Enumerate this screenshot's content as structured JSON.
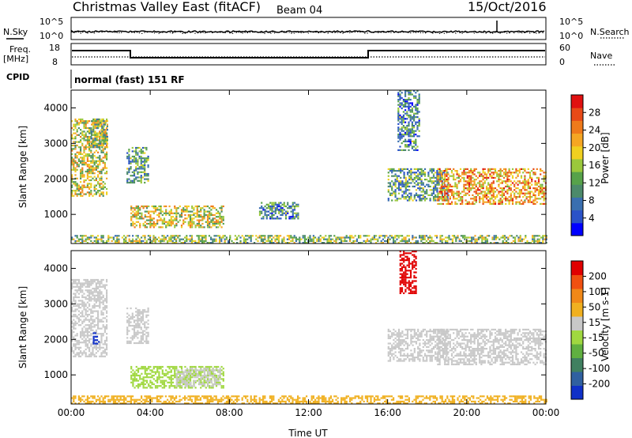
{
  "header": {
    "title": "Christmas Valley East (fitACF)",
    "beam": "Beam 04",
    "date": "15/Oct/2016"
  },
  "top_panels": {
    "nsky_label": "N.Sky",
    "nsearch_label": "N.Search",
    "nsky_ticks": [
      "10^5",
      "10^0"
    ],
    "freq_label_line1": "Freq.",
    "freq_label_line2": "[MHz]",
    "freq_ticks": [
      "18",
      "8"
    ],
    "nave_label": "Nave",
    "nave_ticks": [
      "60",
      "0"
    ],
    "cpid_label": "CPID",
    "cpid_text": "normal (fast) 151 RF"
  },
  "chart_data": [
    {
      "type": "heatmap",
      "name": "power",
      "ylabel": "Slant Range [km]",
      "xlabel": "",
      "ylim": [
        180,
        4500
      ],
      "yticks": [
        "1000",
        "2000",
        "3000",
        "4000"
      ],
      "colorbar_label": "Power [dB]",
      "colorbar_ticks": [
        "4",
        "8",
        "12",
        "16",
        "20",
        "24",
        "28"
      ],
      "colorbar_colors": [
        "#0000ff",
        "#2a52c8",
        "#3a6fb0",
        "#4c8a6b",
        "#57a24a",
        "#9bc83c",
        "#f0d020",
        "#f5a623",
        "#ef7a1a",
        "#e84a17",
        "#e01010"
      ],
      "patches": [
        {
          "t0": 0.0,
          "t1": 1.8,
          "r0": 1500,
          "r1": 3700,
          "level": 0.55
        },
        {
          "t0": 1.0,
          "t1": 1.8,
          "r0": 2900,
          "r1": 3700,
          "level": 0.45
        },
        {
          "t0": 2.8,
          "t1": 3.9,
          "r0": 1900,
          "r1": 2900,
          "level": 0.35
        },
        {
          "t0": 3.0,
          "t1": 7.7,
          "r0": 650,
          "r1": 1250,
          "level": 0.55
        },
        {
          "t0": 0.0,
          "t1": 24.0,
          "r0": 180,
          "r1": 420,
          "level": 0.45
        },
        {
          "t0": 9.5,
          "t1": 11.5,
          "r0": 900,
          "r1": 1350,
          "level": 0.3
        },
        {
          "t0": 16.0,
          "t1": 19.0,
          "r0": 1400,
          "r1": 2300,
          "level": 0.35
        },
        {
          "t0": 16.5,
          "t1": 17.6,
          "r0": 2800,
          "r1": 4500,
          "level": 0.3
        },
        {
          "t0": 18.5,
          "t1": 24.0,
          "r0": 1300,
          "r1": 2300,
          "level": 0.7
        }
      ]
    },
    {
      "type": "heatmap",
      "name": "velocity",
      "ylabel": "Slant Range [km]",
      "xlabel": "Time UT",
      "ylim": [
        180,
        4500
      ],
      "yticks": [
        "1000",
        "2000",
        "3000",
        "4000"
      ],
      "xticks": [
        "00:00",
        "04:00",
        "08:00",
        "12:00",
        "16:00",
        "20:00",
        "00:00"
      ],
      "colorbar_label": "Velocity [m s-1]",
      "colorbar_ticks": [
        "200",
        "100",
        "50",
        "15",
        "-15",
        "-50",
        "-100",
        "-200"
      ],
      "colorbar_colors": [
        "#1030c8",
        "#3060a0",
        "#408060",
        "#60b040",
        "#a0d840",
        "#c8c8c8",
        "#f0b020",
        "#f08818",
        "#f05010",
        "#e00000"
      ],
      "patches": [
        {
          "t0": 0.0,
          "t1": 1.8,
          "r0": 1500,
          "r1": 3700,
          "color": "#c8c8c8"
        },
        {
          "t0": 1.1,
          "t1": 1.4,
          "r0": 1900,
          "r1": 2200,
          "color": "#1030c8"
        },
        {
          "t0": 2.8,
          "t1": 3.9,
          "r0": 1900,
          "r1": 2900,
          "color": "#c8c8c8"
        },
        {
          "t0": 3.0,
          "t1": 7.7,
          "r0": 650,
          "r1": 1250,
          "color": "#a0d840"
        },
        {
          "t0": 5.3,
          "t1": 7.5,
          "r0": 700,
          "r1": 1200,
          "color": "#c8c8c8"
        },
        {
          "t0": 0.0,
          "t1": 24.0,
          "r0": 180,
          "r1": 420,
          "color": "#f0b020"
        },
        {
          "t0": 16.0,
          "t1": 19.0,
          "r0": 1400,
          "r1": 2300,
          "color": "#c8c8c8"
        },
        {
          "t0": 18.5,
          "t1": 24.0,
          "r0": 1300,
          "r1": 2300,
          "color": "#c8c8c8"
        },
        {
          "t0": 16.6,
          "t1": 17.4,
          "r0": 3300,
          "r1": 4500,
          "color": "#e00000"
        }
      ]
    }
  ]
}
